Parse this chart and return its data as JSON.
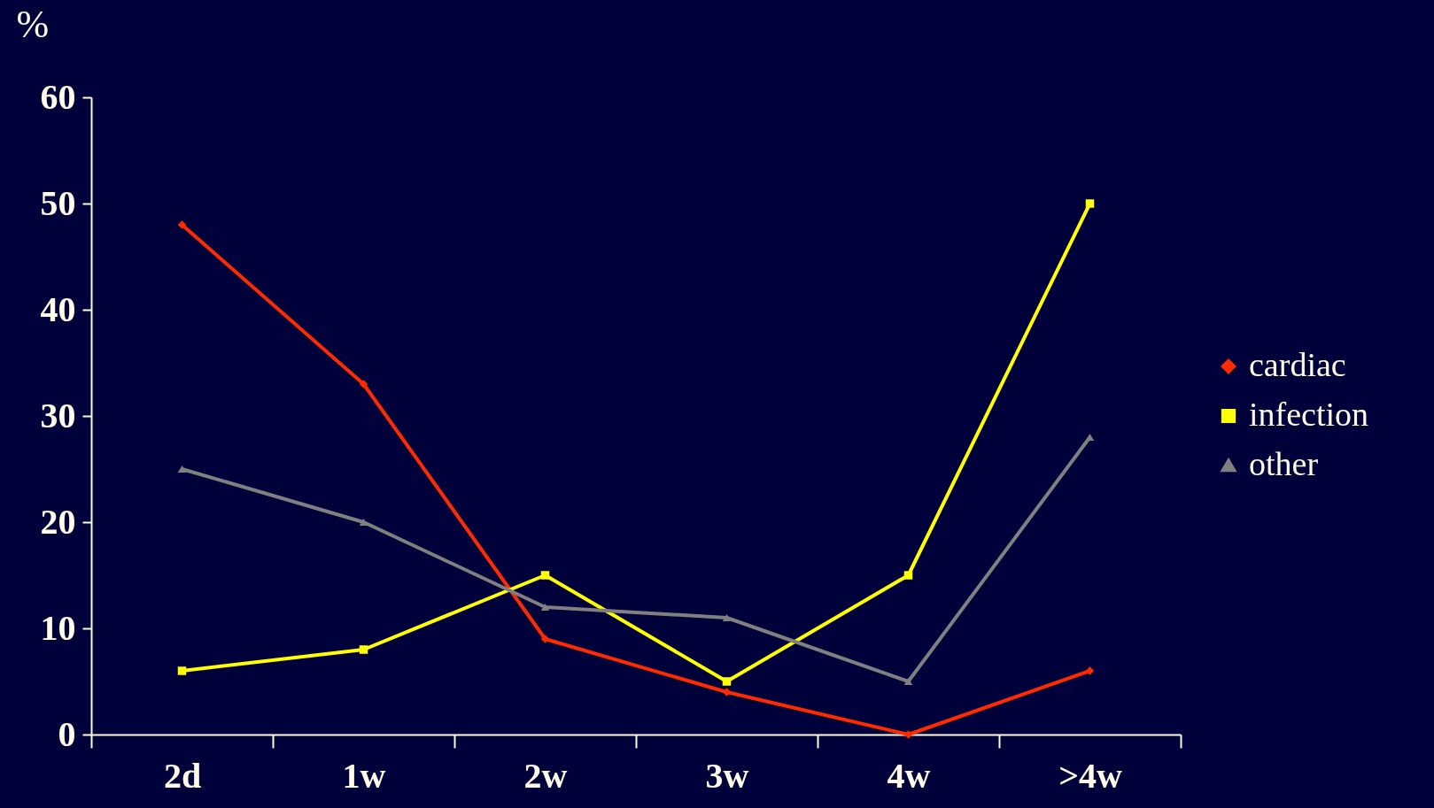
{
  "chart_data": {
    "type": "line",
    "ylabel": "%",
    "categories": [
      "2d",
      "1w",
      "2w",
      "3w",
      "4w",
      ">4w"
    ],
    "series": [
      {
        "name": "cardiac",
        "color": "#ff2a00",
        "marker": "diamond",
        "values": [
          48,
          33,
          9,
          4,
          0,
          6
        ]
      },
      {
        "name": "infection",
        "color": "#ffff00",
        "marker": "square",
        "values": [
          6,
          8,
          15,
          5,
          15,
          50
        ]
      },
      {
        "name": "other",
        "color": "#808080",
        "marker": "triangle",
        "values": [
          25,
          20,
          12,
          11,
          5,
          28
        ]
      }
    ],
    "ylim": [
      0,
      60
    ],
    "yticks": [
      0,
      10,
      20,
      30,
      40,
      50,
      60
    ],
    "grid": false,
    "legend": "right",
    "line_style": "solid"
  }
}
